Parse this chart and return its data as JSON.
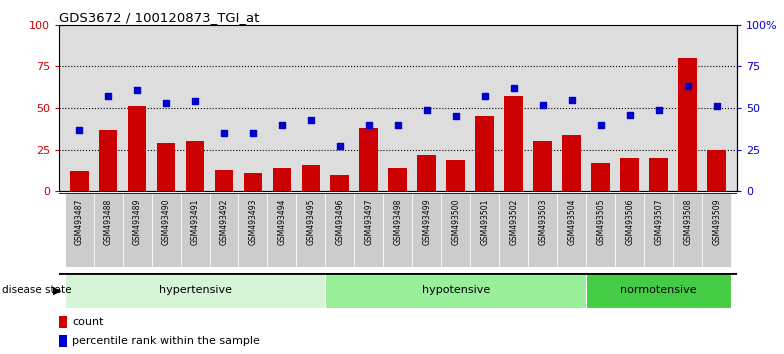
{
  "title": "GDS3672 / 100120873_TGI_at",
  "samples": [
    "GSM493487",
    "GSM493488",
    "GSM493489",
    "GSM493490",
    "GSM493491",
    "GSM493492",
    "GSM493493",
    "GSM493494",
    "GSM493495",
    "GSM493496",
    "GSM493497",
    "GSM493498",
    "GSM493499",
    "GSM493500",
    "GSM493501",
    "GSM493502",
    "GSM493503",
    "GSM493504",
    "GSM493505",
    "GSM493506",
    "GSM493507",
    "GSM493508",
    "GSM493509"
  ],
  "bar_values": [
    12,
    37,
    51,
    29,
    30,
    13,
    11,
    14,
    16,
    10,
    38,
    14,
    22,
    19,
    45,
    57,
    30,
    34,
    17,
    20,
    20,
    80,
    25
  ],
  "dot_values": [
    37,
    57,
    61,
    53,
    54,
    35,
    35,
    40,
    43,
    27,
    40,
    40,
    49,
    45,
    57,
    62,
    52,
    55,
    40,
    46,
    49,
    63,
    51
  ],
  "groups": [
    {
      "label": "hypertensive",
      "start": 0,
      "end": 9,
      "color": "#d6f5d6"
    },
    {
      "label": "hypotensive",
      "start": 9,
      "end": 18,
      "color": "#99ee99"
    },
    {
      "label": "normotensive",
      "start": 18,
      "end": 23,
      "color": "#44cc44"
    }
  ],
  "bar_color": "#cc0000",
  "dot_color": "#0000cc",
  "plot_bg": "#dddddd",
  "ylim": [
    0,
    100
  ],
  "legend_count_label": "count",
  "legend_pct_label": "percentile rank within the sample"
}
